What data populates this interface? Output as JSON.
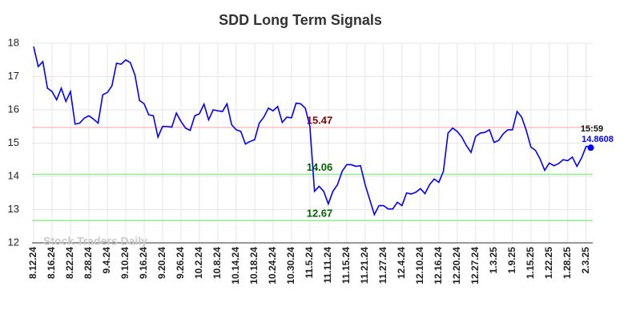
{
  "chart_data": {
    "type": "line",
    "title": "SDD Long Term Signals",
    "watermark": "Stock Traders Daily",
    "categories": [
      "8.12.24",
      null,
      null,
      null,
      "8.16.24",
      null,
      null,
      null,
      "8.22.24",
      null,
      null,
      null,
      "8.28.24",
      null,
      null,
      null,
      "9.4.24",
      null,
      null,
      null,
      "9.10.24",
      null,
      null,
      null,
      "9.16.24",
      null,
      null,
      null,
      "9.20.24",
      null,
      null,
      null,
      "9.26.24",
      null,
      null,
      null,
      "10.2.24",
      null,
      null,
      null,
      "10.8.24",
      null,
      null,
      null,
      "10.14.24",
      null,
      null,
      null,
      "10.18.24",
      null,
      null,
      null,
      "10.24.24",
      null,
      null,
      null,
      "10.30.24",
      null,
      null,
      null,
      "11.5.24",
      null,
      null,
      null,
      "11.11.24",
      null,
      null,
      null,
      "11.15.24",
      null,
      null,
      null,
      "11.21.24",
      null,
      null,
      null,
      "11.27.24",
      null,
      null,
      null,
      "12.4.24",
      null,
      null,
      null,
      "12.10.24",
      null,
      null,
      null,
      "12.16.24",
      null,
      null,
      null,
      "12.20.24",
      null,
      null,
      null,
      "12.27.24",
      null,
      null,
      null,
      "1.3.25",
      null,
      null,
      null,
      "1.9.25",
      null,
      null,
      null,
      "1.15.25",
      null,
      null,
      null,
      "1.22.25",
      null,
      null,
      null,
      "1.28.25",
      null,
      null,
      null,
      "2.3.25",
      null
    ],
    "values": [
      17.9,
      17.3,
      17.45,
      16.65,
      16.55,
      16.3,
      16.65,
      16.25,
      16.55,
      15.57,
      15.6,
      15.75,
      15.82,
      15.72,
      15.6,
      16.45,
      16.52,
      16.72,
      17.4,
      17.37,
      17.5,
      17.42,
      17.05,
      16.28,
      16.18,
      15.85,
      15.82,
      15.18,
      15.5,
      15.5,
      15.48,
      15.9,
      15.65,
      15.45,
      15.38,
      15.82,
      15.88,
      16.17,
      15.7,
      16.0,
      15.97,
      15.95,
      16.18,
      15.55,
      15.4,
      15.35,
      14.97,
      15.05,
      15.1,
      15.6,
      15.78,
      16.05,
      15.97,
      16.1,
      15.62,
      15.78,
      15.76,
      16.2,
      16.18,
      16.05,
      15.5,
      13.55,
      13.7,
      13.55,
      13.17,
      13.55,
      13.75,
      14.15,
      14.35,
      14.35,
      14.3,
      14.32,
      13.75,
      13.3,
      12.85,
      13.12,
      13.12,
      13.02,
      13.02,
      13.22,
      13.12,
      13.5,
      13.47,
      13.52,
      13.63,
      13.48,
      13.75,
      13.92,
      13.82,
      14.15,
      15.3,
      15.45,
      15.35,
      15.18,
      14.92,
      14.72,
      15.2,
      15.3,
      15.32,
      15.4,
      15.02,
      15.08,
      15.28,
      15.4,
      15.4,
      15.95,
      15.78,
      15.38,
      14.88,
      14.78,
      14.52,
      14.18,
      14.4,
      14.32,
      14.38,
      14.5,
      14.47,
      14.58,
      14.3,
      14.55,
      14.9,
      14.86
    ],
    "color": "#0000ff",
    "ylim": [
      12,
      18
    ],
    "yticks": [
      12,
      13,
      14,
      15,
      16,
      17,
      18
    ],
    "grid": true,
    "reference_lines": [
      {
        "value": 15.47,
        "color": "#ffc0c0",
        "label_color": "#8b0000"
      },
      {
        "value": 14.06,
        "color": "#90ee90",
        "label_color": "#006400"
      },
      {
        "value": 12.67,
        "color": "#90ee90",
        "label_color": "#006400"
      }
    ],
    "last_label": {
      "time": "15:59",
      "value": 14.8608,
      "color": "#0000ff"
    }
  }
}
